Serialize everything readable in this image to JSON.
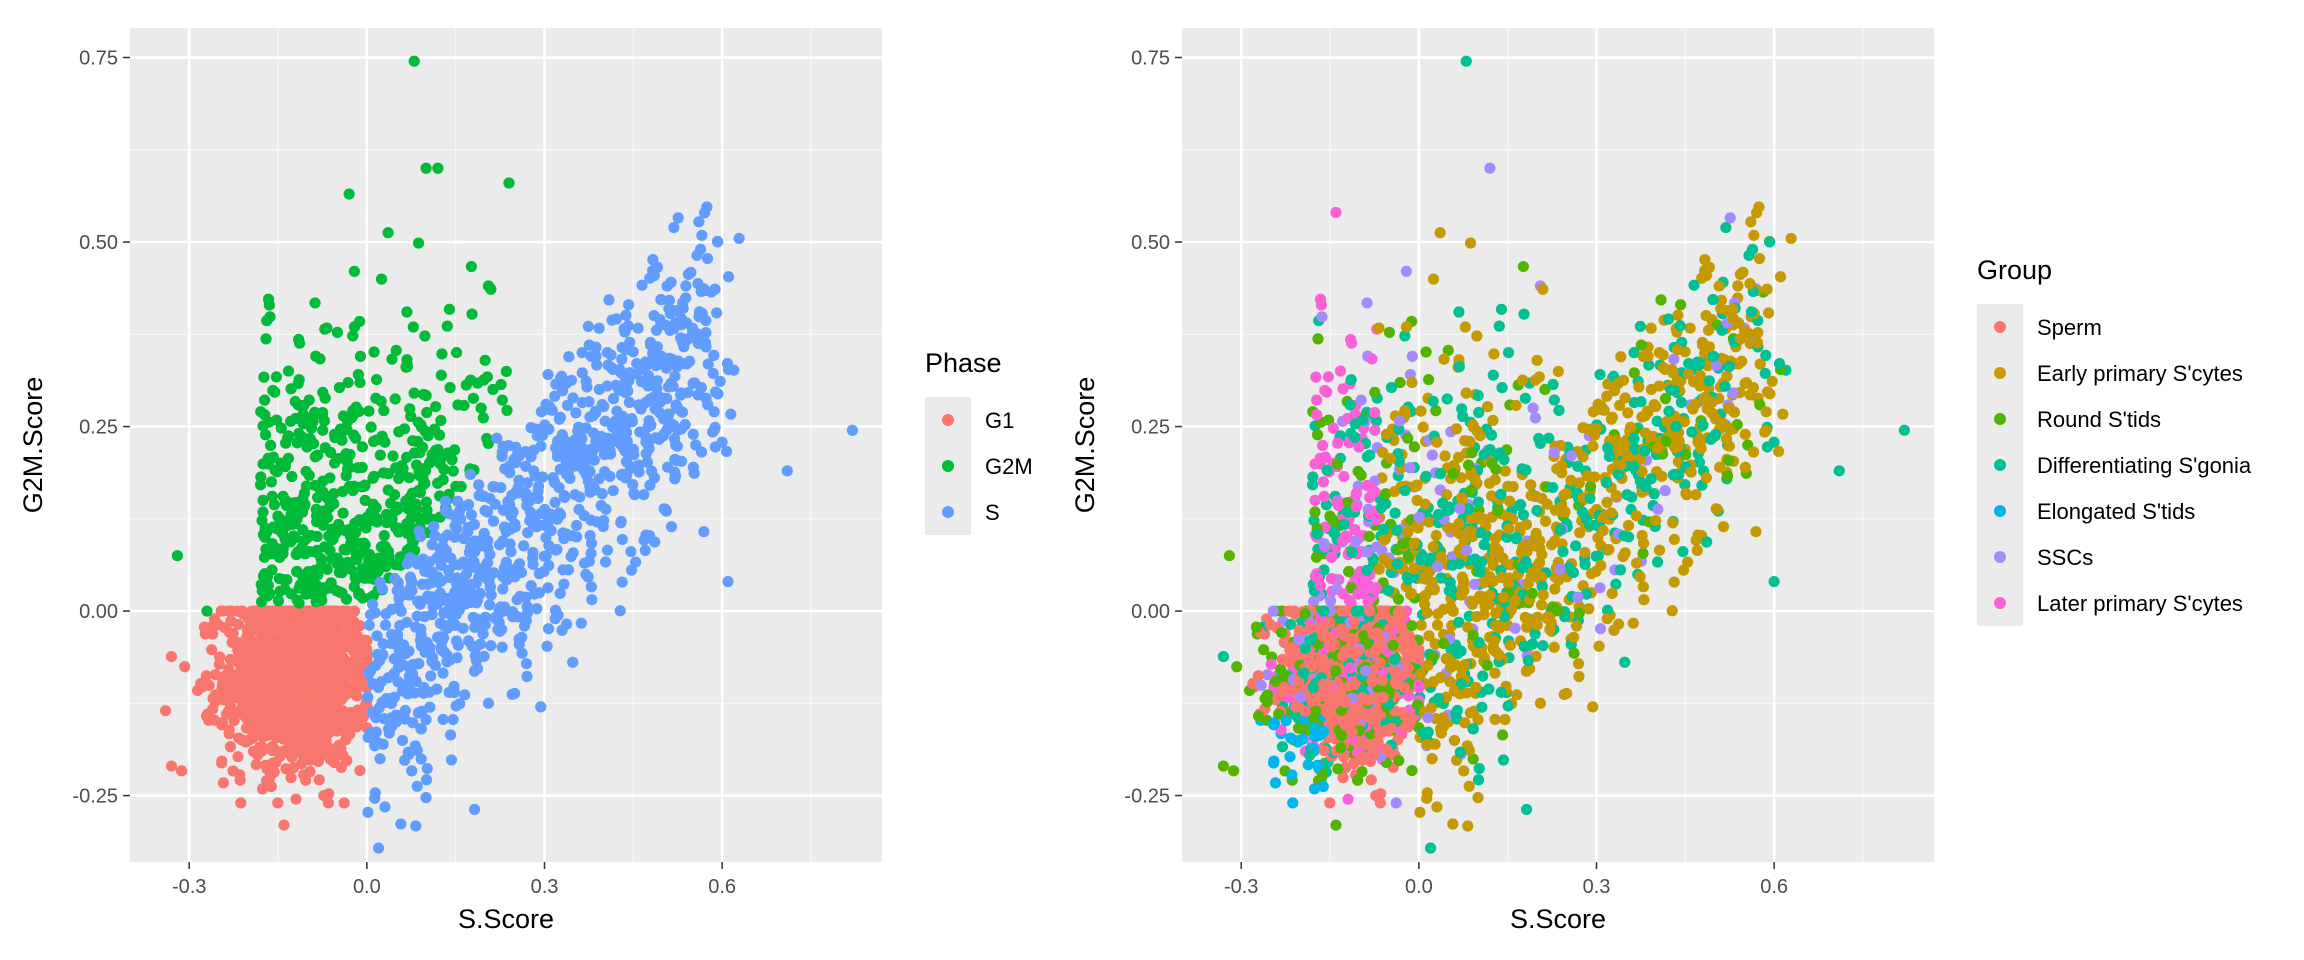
{
  "chart_data": [
    {
      "type": "scatter",
      "title": "",
      "xlabel": "S.Score",
      "ylabel": "G2M.Score",
      "xlim": [
        -0.4,
        0.87
      ],
      "ylim": [
        -0.34,
        0.79
      ],
      "x_ticks": [
        "-0.3",
        "0.0",
        "0.3",
        "0.6"
      ],
      "y_ticks": [
        "-0.25",
        "0.00",
        "0.25",
        "0.50",
        "0.75"
      ],
      "grid": true,
      "legend": {
        "title": "Phase",
        "position": "right"
      },
      "series": [
        {
          "name": "G1",
          "color": "#F8766D"
        },
        {
          "name": "G2M",
          "color": "#00BA38"
        },
        {
          "name": "S",
          "color": "#619CFF"
        }
      ],
      "highlight_points": [
        {
          "series": "G2M",
          "x": 0.08,
          "y": 0.745
        },
        {
          "series": "G2M",
          "x": 0.1,
          "y": 0.6
        },
        {
          "series": "G2M",
          "x": 0.12,
          "y": 0.6
        },
        {
          "series": "G2M",
          "x": 0.24,
          "y": 0.58
        },
        {
          "series": "G2M",
          "x": -0.03,
          "y": 0.565
        },
        {
          "series": "G2M",
          "x": -0.32,
          "y": 0.075
        },
        {
          "series": "G2M",
          "x": -0.27,
          "y": 0.0
        },
        {
          "series": "S",
          "x": 0.82,
          "y": 0.245
        },
        {
          "series": "S",
          "x": 0.71,
          "y": 0.19
        },
        {
          "series": "S",
          "x": 0.61,
          "y": 0.04
        },
        {
          "series": "S",
          "x": 0.51,
          "y": 0.41
        },
        {
          "series": "S",
          "x": 0.53,
          "y": 0.37
        },
        {
          "series": "G1",
          "x": -0.33,
          "y": -0.21
        },
        {
          "series": "G1",
          "x": -0.14,
          "y": -0.29
        },
        {
          "series": "G1",
          "x": -0.34,
          "y": -0.135
        }
      ]
    },
    {
      "type": "scatter",
      "title": "",
      "xlabel": "S.Score",
      "ylabel": "G2M.Score",
      "xlim": [
        -0.4,
        0.87
      ],
      "ylim": [
        -0.34,
        0.79
      ],
      "x_ticks": [
        "-0.3",
        "0.0",
        "0.3",
        "0.6"
      ],
      "y_ticks": [
        "-0.25",
        "0.00",
        "0.25",
        "0.50",
        "0.75"
      ],
      "grid": true,
      "legend": {
        "title": "Group",
        "position": "right"
      },
      "series": [
        {
          "name": "Sperm",
          "color": "#F8766D"
        },
        {
          "name": "Early primary S'cytes",
          "color": "#C49A00"
        },
        {
          "name": "Round S'tids",
          "color": "#53B400"
        },
        {
          "name": "Differentiating S'gonia",
          "color": "#00C094"
        },
        {
          "name": "Elongated S'tids",
          "color": "#00B6EB"
        },
        {
          "name": "SSCs",
          "color": "#A58AFF"
        },
        {
          "name": "Later primary S'cytes",
          "color": "#FB61D7"
        }
      ],
      "highlight_points": [
        {
          "series": "Differentiating S'gonia",
          "x": 0.08,
          "y": 0.745
        },
        {
          "series": "Differentiating S'gonia",
          "x": 0.82,
          "y": 0.245
        },
        {
          "series": "Differentiating S'gonia",
          "x": 0.71,
          "y": 0.19
        },
        {
          "series": "Differentiating S'gonia",
          "x": 0.6,
          "y": 0.04
        },
        {
          "series": "SSCs",
          "x": 0.12,
          "y": 0.6
        },
        {
          "series": "Later primary S'cytes",
          "x": -0.14,
          "y": 0.54
        },
        {
          "series": "Early primary S'cytes",
          "x": 0.51,
          "y": 0.41
        },
        {
          "series": "Round S'tids",
          "x": -0.32,
          "y": 0.075
        },
        {
          "series": "Round S'tids",
          "x": -0.14,
          "y": -0.29
        },
        {
          "series": "Round S'tids",
          "x": -0.33,
          "y": -0.21
        }
      ]
    }
  ]
}
